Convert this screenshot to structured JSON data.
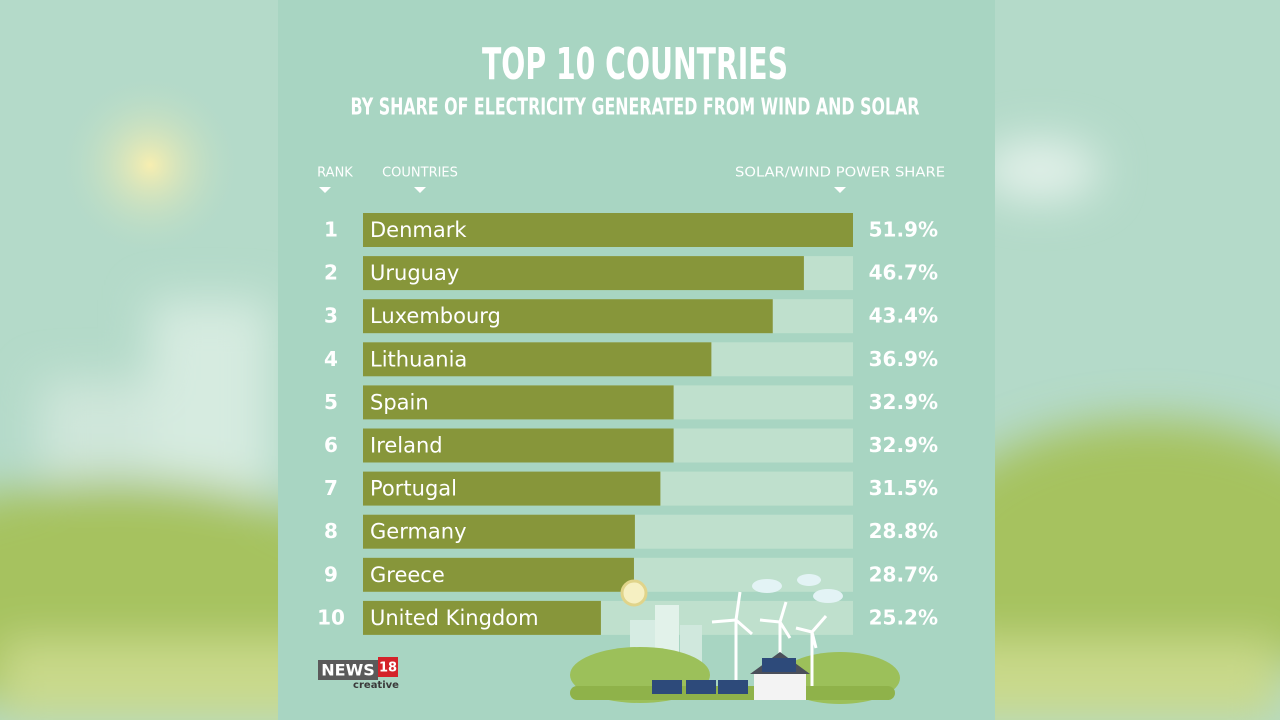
{
  "chart_data": {
    "type": "bar",
    "orientation": "horizontal",
    "title": "TOP 10 COUNTRIES",
    "subtitle": "BY SHARE OF ELECTRICITY GENERATED FROM WIND AND SOLAR",
    "headers": {
      "rank": "RANK",
      "countries": "COUNTRIES",
      "share": "SOLAR/WIND POWER SHARE"
    },
    "ranks": [
      1,
      2,
      3,
      4,
      5,
      6,
      7,
      8,
      9,
      10
    ],
    "categories": [
      "Denmark",
      "Uruguay",
      "Luxembourg",
      "Lithuania",
      "Spain",
      "Ireland",
      "Portugal",
      "Germany",
      "Greece",
      "United Kingdom"
    ],
    "values": [
      51.9,
      46.7,
      43.4,
      36.9,
      32.9,
      32.9,
      31.5,
      28.8,
      28.7,
      25.2
    ],
    "value_labels": [
      "51.9%",
      "46.7%",
      "43.4%",
      "36.9%",
      "32.9%",
      "32.9%",
      "31.5%",
      "28.8%",
      "28.7%",
      "25.2%"
    ],
    "color": "#87963a",
    "track_color": "#bfe0cd"
  },
  "logo": {
    "name": "NEWS",
    "number": "18",
    "tagline": "creative"
  }
}
